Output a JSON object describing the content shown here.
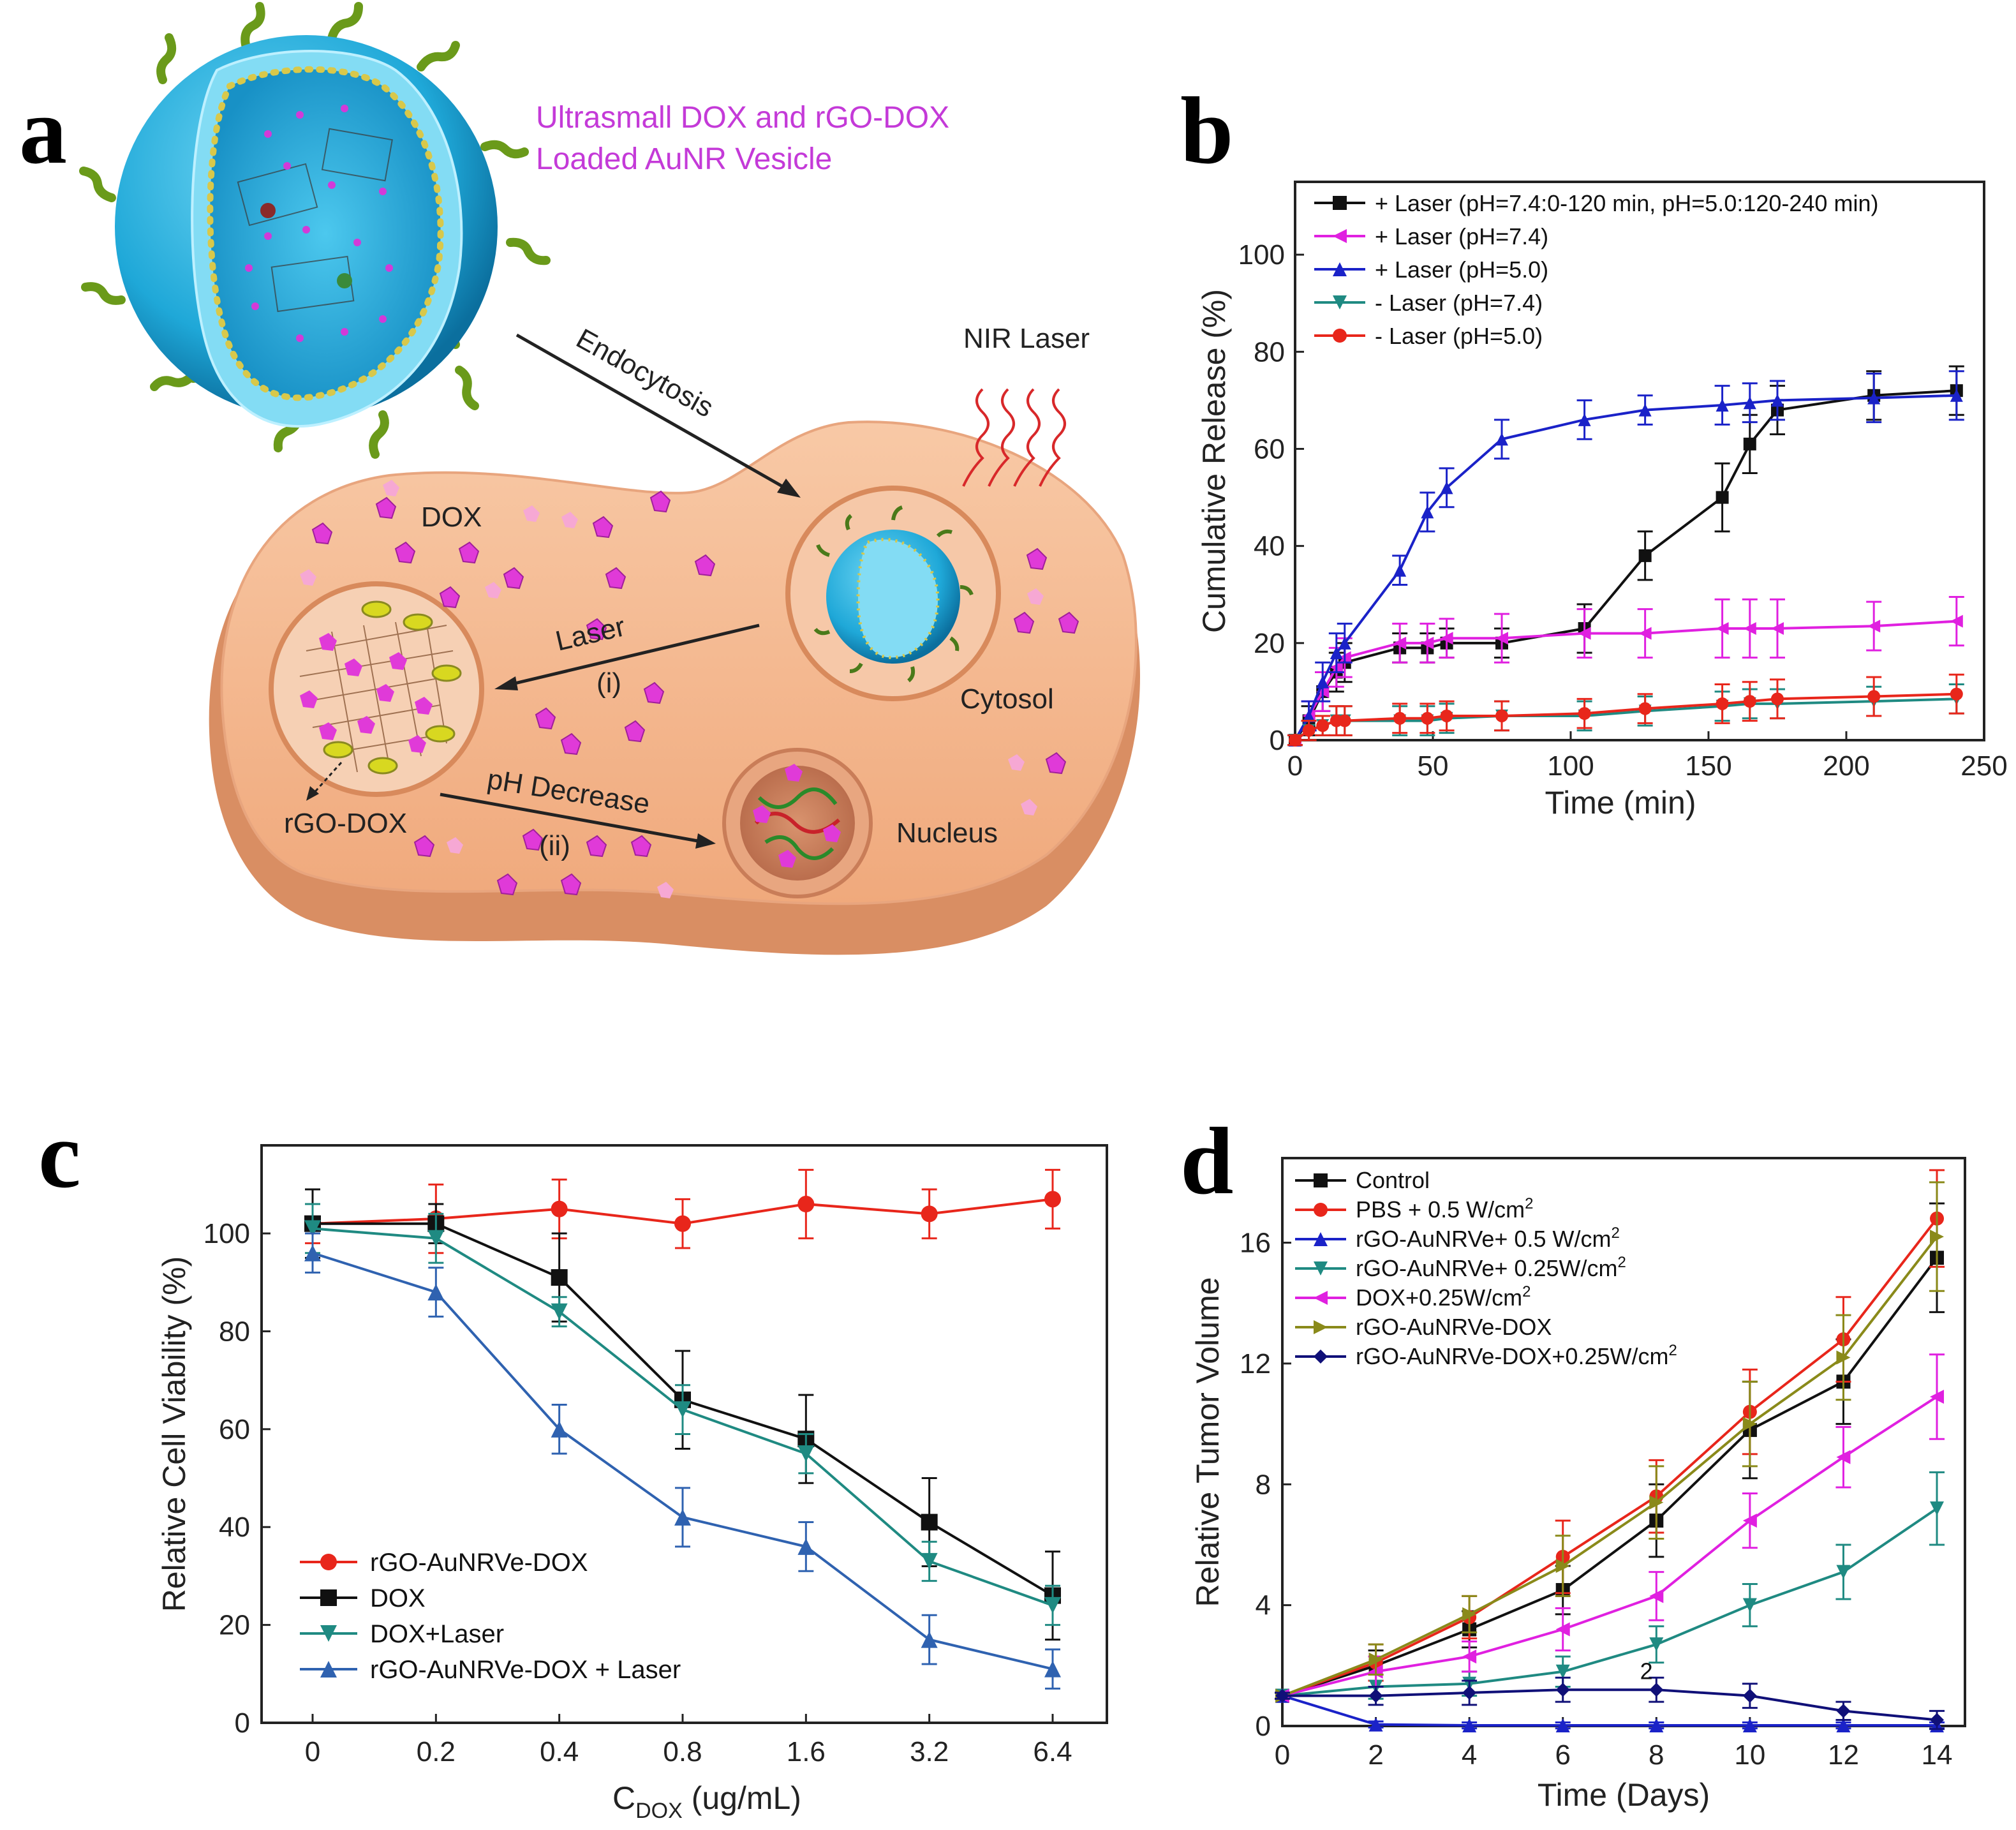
{
  "panels": {
    "a": {
      "letter": "a"
    },
    "b": {
      "letter": "b"
    },
    "c": {
      "letter": "c"
    },
    "d": {
      "letter": "d"
    }
  },
  "schematic": {
    "vesicle_title_line1": "Ultrasmall  DOX and rGO-DOX",
    "vesicle_title_line2": "Loaded  AuNR Vesicle",
    "endocytosis": "Endocytosis",
    "nir_laser": "NIR Laser",
    "dox": "DOX",
    "laser": "Laser",
    "step_i": "(i)",
    "cytosol": "Cytosol",
    "ph_decrease": "pH Decrease",
    "step_ii": "(ii)",
    "rgo_dox": "rGO-DOX",
    "nucleus": "Nucleus"
  },
  "colors": {
    "black": "#111111",
    "magenta": "#e020e0",
    "blue": "#1a22c8",
    "teal": "#1f8a82",
    "red": "#e8261b",
    "steelblue": "#2f62b0",
    "olive": "#8a8a1a",
    "navy": "#101078",
    "cell": "#f4b48c",
    "vesicle": "#1fa8d8",
    "dox": "#e03ad8"
  },
  "chart_data": [
    {
      "id": "b",
      "type": "line",
      "xlabel": "Time (min)",
      "ylabel": "Cumulative Release (%)",
      "xlim": [
        0,
        250
      ],
      "ylim": [
        0,
        115
      ],
      "xticks": [
        0,
        50,
        100,
        150,
        200,
        250
      ],
      "yticks": [
        0,
        20,
        40,
        60,
        80,
        100
      ],
      "series": [
        {
          "name": "+ Laser (pH=7.4:0-120 min, pH=5.0:120-240 min)",
          "color": "#111111",
          "marker": "square",
          "x": [
            0,
            5,
            10,
            15,
            18,
            38,
            48,
            55,
            75,
            105,
            127,
            155,
            165,
            175,
            210,
            240
          ],
          "y": [
            0,
            4,
            10,
            14,
            16,
            19,
            19,
            20,
            20,
            23,
            38,
            50,
            61,
            68,
            71,
            72
          ],
          "err": [
            1,
            3,
            4,
            4,
            4,
            3,
            3,
            3,
            3,
            5,
            5,
            7,
            6,
            5,
            5,
            5
          ]
        },
        {
          "name": "+ Laser (pH=7.4)",
          "color": "#e020e0",
          "marker": "triangle-left",
          "x": [
            0,
            5,
            10,
            15,
            18,
            38,
            48,
            55,
            75,
            105,
            127,
            155,
            165,
            175,
            210,
            240
          ],
          "y": [
            0,
            5,
            10,
            15,
            17,
            20,
            20,
            21,
            21,
            22,
            22,
            23,
            23,
            23,
            23.5,
            24.5
          ],
          "err": [
            1,
            3,
            4,
            4,
            4,
            4,
            4,
            4,
            5,
            5,
            5,
            6,
            6,
            6,
            5,
            5
          ]
        },
        {
          "name": "+ Laser (pH=5.0)",
          "color": "#1a22c8",
          "marker": "triangle-up",
          "x": [
            0,
            5,
            10,
            15,
            18,
            38,
            48,
            55,
            75,
            105,
            127,
            155,
            165,
            175,
            210,
            240
          ],
          "y": [
            0,
            5,
            12,
            18,
            20,
            35,
            47,
            52,
            62,
            66,
            68,
            69,
            69.5,
            70,
            70.5,
            71
          ],
          "err": [
            1,
            3,
            4,
            4,
            4,
            3,
            4,
            4,
            4,
            4,
            3,
            4,
            4,
            4,
            5,
            5
          ]
        },
        {
          "name": "- Laser (pH=7.4)",
          "color": "#1f8a82",
          "marker": "triangle-down",
          "x": [
            0,
            5,
            10,
            15,
            18,
            38,
            48,
            55,
            75,
            105,
            127,
            155,
            165,
            175,
            210,
            240
          ],
          "y": [
            0,
            2,
            3,
            4,
            4,
            4,
            4,
            4.5,
            5,
            5,
            6,
            7,
            7.5,
            7.5,
            8,
            8.5
          ],
          "err": [
            1,
            2,
            2,
            3,
            3,
            3,
            3,
            3,
            3,
            3,
            3,
            3,
            3,
            3,
            3,
            3
          ]
        },
        {
          "name": "- Laser (pH=5.0)",
          "color": "#e8261b",
          "marker": "circle",
          "x": [
            0,
            5,
            10,
            15,
            18,
            38,
            48,
            55,
            75,
            105,
            127,
            155,
            165,
            175,
            210,
            240
          ],
          "y": [
            0,
            2,
            3,
            4,
            4,
            4.5,
            4.5,
            5,
            5,
            5.5,
            6.5,
            7.5,
            8,
            8.5,
            9,
            9.5
          ],
          "err": [
            1,
            2,
            2,
            3,
            3,
            3,
            3,
            3,
            3,
            3,
            3,
            4,
            4,
            4,
            4,
            4
          ]
        }
      ]
    },
    {
      "id": "c",
      "type": "line",
      "xlabel_main": "C",
      "xlabel_sub": "DOX",
      "xlabel_rest": " (ug/mL)",
      "ylabel": "Relative Cell Viability (%)",
      "categories": [
        "0",
        "0.2",
        "0.4",
        "0.8",
        "1.6",
        "3.2",
        "6.4"
      ],
      "ylim": [
        0,
        118
      ],
      "yticks": [
        0,
        20,
        40,
        60,
        80,
        100
      ],
      "series": [
        {
          "name": "rGO-AuNRVe-DOX",
          "color": "#e8261b",
          "marker": "circle",
          "values": [
            102,
            103,
            105,
            102,
            106,
            104,
            107
          ],
          "err": [
            4,
            7,
            6,
            5,
            7,
            5,
            6
          ]
        },
        {
          "name": "DOX",
          "color": "#111111",
          "marker": "square",
          "values": [
            102,
            102,
            91,
            66,
            58,
            41,
            26
          ],
          "err": [
            7,
            4,
            9,
            10,
            9,
            9,
            9
          ]
        },
        {
          "name": "DOX+Laser",
          "color": "#1f8a82",
          "marker": "triangle-down",
          "values": [
            101,
            99,
            84,
            64,
            55,
            33,
            24
          ],
          "err": [
            5,
            5,
            3,
            5,
            4,
            4,
            4
          ]
        },
        {
          "name": "rGO-AuNRVe-DOX + Laser",
          "color": "#2f62b0",
          "marker": "triangle-up",
          "values": [
            96,
            88,
            60,
            42,
            36,
            17,
            11
          ],
          "err": [
            4,
            5,
            5,
            6,
            5,
            5,
            4
          ]
        }
      ]
    },
    {
      "id": "d",
      "type": "line",
      "xlabel": "Time (Days)",
      "ylabel": "Relative Tumor Volume",
      "xlim": [
        0,
        14.6
      ],
      "ylim": [
        0,
        18.8
      ],
      "xticks": [
        0,
        2,
        4,
        6,
        8,
        10,
        12,
        14
      ],
      "yticks": [
        0,
        4,
        8,
        12,
        16
      ],
      "stray_label": "2",
      "series": [
        {
          "name": "Control",
          "sup": "",
          "color": "#111111",
          "marker": "square",
          "x": [
            0,
            2,
            4,
            6,
            8,
            10,
            12,
            14
          ],
          "y": [
            1,
            2,
            3.2,
            4.5,
            6.8,
            9.8,
            11.4,
            15.5
          ],
          "err": [
            0.1,
            0.5,
            0.6,
            0.8,
            1.2,
            1.6,
            1.4,
            1.8
          ]
        },
        {
          "name": "PBS + 0.5 W/cm",
          "sup": "2",
          "color": "#e8261b",
          "marker": "circle",
          "x": [
            0,
            2,
            4,
            6,
            8,
            10,
            12,
            14
          ],
          "y": [
            1,
            2.1,
            3.6,
            5.6,
            7.6,
            10.4,
            12.8,
            16.8
          ],
          "err": [
            0.1,
            0.6,
            0.7,
            1.2,
            1.2,
            1.4,
            1.4,
            1.6
          ]
        },
        {
          "name": "rGO-AuNRVe+ 0.5 W/cm",
          "sup": "2",
          "color": "#1a22c8",
          "marker": "triangle-up",
          "x": [
            0,
            2,
            4,
            6,
            8,
            10,
            12,
            14
          ],
          "y": [
            1,
            0.05,
            0.02,
            0.02,
            0.02,
            0.02,
            0.02,
            0.02
          ],
          "err": [
            0.1,
            0.1,
            0.1,
            0.1,
            0.1,
            0.1,
            0.1,
            0.1
          ]
        },
        {
          "name": "rGO-AuNRVe+ 0.25W/cm",
          "sup": "2",
          "color": "#1f8a82",
          "marker": "triangle-down",
          "x": [
            0,
            2,
            4,
            6,
            8,
            10,
            12,
            14
          ],
          "y": [
            1,
            1.3,
            1.4,
            1.8,
            2.7,
            4.0,
            5.1,
            7.2
          ],
          "err": [
            0.1,
            0.4,
            0.4,
            0.5,
            0.6,
            0.7,
            0.9,
            1.2
          ]
        },
        {
          "name": "DOX+0.25W/cm",
          "sup": "2",
          "color": "#e020e0",
          "marker": "triangle-left",
          "x": [
            0,
            2,
            4,
            6,
            8,
            10,
            12,
            14
          ],
          "y": [
            1,
            1.8,
            2.3,
            3.2,
            4.3,
            6.8,
            8.9,
            10.9
          ],
          "err": [
            0.1,
            0.5,
            0.5,
            0.7,
            0.8,
            0.9,
            1.0,
            1.4
          ]
        },
        {
          "name": "rGO-AuNRVe-DOX",
          "sup": "",
          "color": "#8a8a1a",
          "marker": "triangle-right",
          "x": [
            0,
            2,
            4,
            6,
            8,
            10,
            12,
            14
          ],
          "y": [
            1,
            2.2,
            3.7,
            5.3,
            7.4,
            10.0,
            12.2,
            16.2
          ],
          "err": [
            0.1,
            0.5,
            0.6,
            1.0,
            1.2,
            1.4,
            1.4,
            1.8
          ]
        },
        {
          "name": "rGO-AuNRVe-DOX+0.25W/cm",
          "sup": "2",
          "color": "#101078",
          "marker": "diamond",
          "x": [
            0,
            2,
            4,
            6,
            8,
            10,
            12,
            14
          ],
          "y": [
            1,
            1.0,
            1.1,
            1.2,
            1.2,
            1.0,
            0.5,
            0.2
          ],
          "err": [
            0.1,
            0.3,
            0.4,
            0.4,
            0.4,
            0.4,
            0.3,
            0.3
          ]
        }
      ]
    }
  ]
}
